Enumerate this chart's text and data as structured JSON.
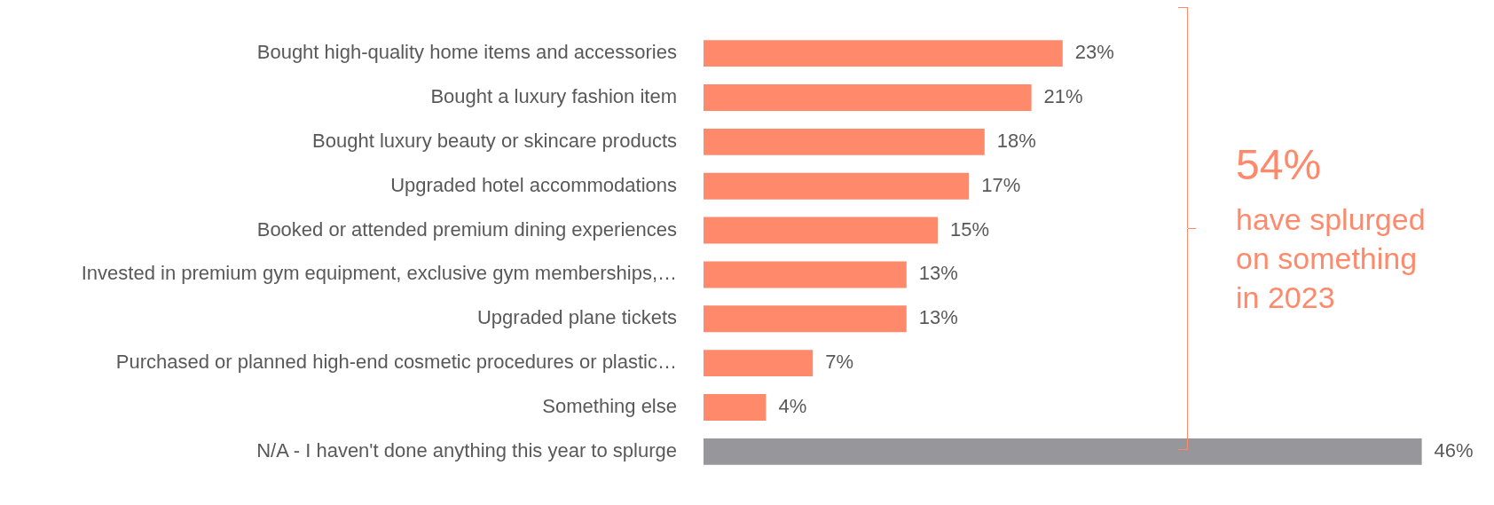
{
  "chart_data": {
    "type": "bar",
    "orientation": "horizontal",
    "categories": [
      "Bought high-quality home items and accessories",
      "Bought a luxury fashion item",
      "Bought luxury beauty or skincare products",
      "Upgraded hotel accommodations",
      "Booked or attended premium dining experiences",
      "Invested in premium gym equipment, exclusive gym memberships,…",
      "Upgraded plane tickets",
      "Purchased or planned high-end cosmetic procedures or plastic…",
      "Something else",
      "N/A - I haven't done anything this year to splurge"
    ],
    "values": [
      23,
      21,
      18,
      17,
      15,
      13,
      13,
      7,
      4,
      46
    ],
    "colors": [
      "#ff896b",
      "#ff896b",
      "#ff896b",
      "#ff896b",
      "#ff896b",
      "#ff896b",
      "#ff896b",
      "#ff896b",
      "#ff896b",
      "#97979b"
    ],
    "value_labels": [
      "23%",
      "21%",
      "18%",
      "17%",
      "15%",
      "13%",
      "13%",
      "7%",
      "4%",
      "46%"
    ],
    "legend": false,
    "annotations": [
      "54%",
      "have splurged on something in 2023"
    ]
  }
}
